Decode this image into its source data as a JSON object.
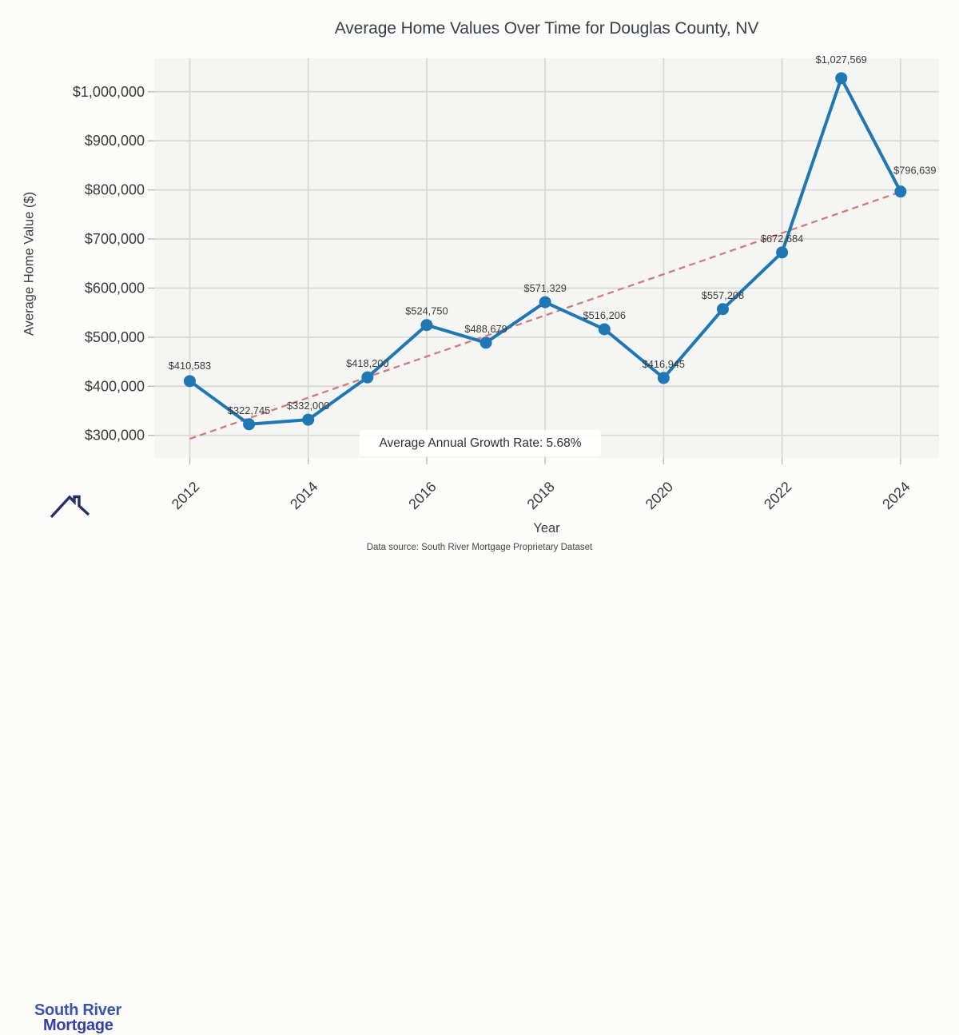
{
  "chart_data": {
    "type": "line",
    "title": "Average Home Values Over Time for Douglas County, NV",
    "xlabel": "Year",
    "ylabel": "Average Home Value ($)",
    "x": [
      2012,
      2013,
      2014,
      2015,
      2016,
      2017,
      2018,
      2019,
      2020,
      2021,
      2022,
      2023,
      2024
    ],
    "series": [
      {
        "name": "Average Home Value",
        "color": "#1f77b4",
        "values": [
          410583,
          322745,
          332000,
          418200,
          524750,
          488679,
          571329,
          516206,
          416945,
          557208,
          672684,
          1027569,
          796639
        ],
        "point_labels": [
          "$410,583",
          "$322,745",
          "$332,000",
          "$418,200",
          "$524,750",
          "$488,679",
          "$571,329",
          "$516,206",
          "$416,945",
          "$557,208",
          "$672,684",
          "$1,027,569",
          "$796,639"
        ]
      }
    ],
    "trend_line": {
      "style": "dashed",
      "color": "#d4797f",
      "x": [
        2012,
        2024
      ],
      "values": [
        293000,
        796000
      ]
    },
    "annotation": "Average Annual Growth Rate: 5.68%",
    "x_ticks": [
      {
        "value": 2012,
        "label": "2012"
      },
      {
        "value": 2014,
        "label": "2014"
      },
      {
        "value": 2016,
        "label": "2016"
      },
      {
        "value": 2018,
        "label": "2018"
      },
      {
        "value": 2020,
        "label": "2020"
      },
      {
        "value": 2022,
        "label": "2022"
      },
      {
        "value": 2024,
        "label": "2024"
      }
    ],
    "y_ticks": [
      {
        "value": 300000,
        "label": "$300,000"
      },
      {
        "value": 400000,
        "label": "$400,000"
      },
      {
        "value": 500000,
        "label": "$500,000"
      },
      {
        "value": 600000,
        "label": "$600,000"
      },
      {
        "value": 700000,
        "label": "$700,000"
      },
      {
        "value": 800000,
        "label": "$800,000"
      },
      {
        "value": 900000,
        "label": "$900,000"
      },
      {
        "value": 1000000,
        "label": "$1,000,000"
      }
    ],
    "xlim": [
      2011.4,
      2024.65
    ],
    "ylim": [
      254000,
      1068000
    ],
    "grid": true,
    "legend_position": "none",
    "colors": {
      "plot_background": "#f5f5f3",
      "figure_background": "#fcfcfb",
      "gridline": "#d8d8d6",
      "tick": "#b9b9b6",
      "tick_label": "#3b3b3b",
      "data_label": "#3a3a3a"
    }
  },
  "logo": {
    "line1": "South River",
    "line2": "Mortgage",
    "roof_color": "#292f6b"
  },
  "footer": {
    "text": "Data source: South River Mortgage Proprietary Dataset"
  }
}
